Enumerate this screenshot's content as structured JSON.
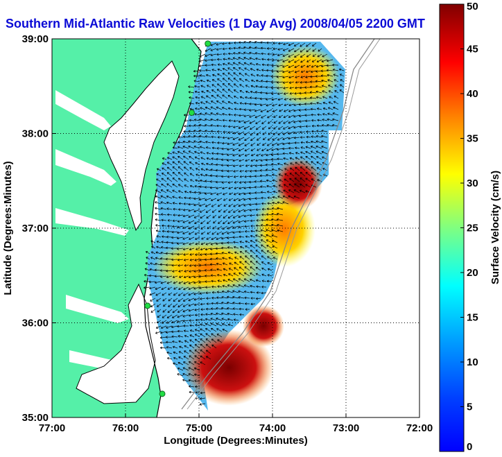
{
  "title": "Southern Mid-Atlantic Raw Velocities (1 Day Avg) 2008/04/05 2200 GMT",
  "map": {
    "xlabel": "Longitude (Degrees:Minutes)",
    "ylabel": "Latitude (Degrees:Minutes)",
    "lon_range": [
      -77,
      -72
    ],
    "lat_range": [
      35,
      39
    ],
    "x_ticks": [
      "77:00",
      "76:00",
      "75:00",
      "74:00",
      "73:00",
      "72:00"
    ],
    "y_ticks": [
      "39:00",
      "38:00",
      "37:00",
      "36:00",
      "35:00"
    ],
    "grid": "dotted",
    "land_color": "#55f0a8",
    "stations": [
      {
        "lon": -74.88,
        "lat": 38.95
      },
      {
        "lon": -75.1,
        "lat": 38.22
      },
      {
        "lon": -75.7,
        "lat": 36.18
      },
      {
        "lon": -75.5,
        "lat": 35.25
      }
    ]
  },
  "colorbar": {
    "label": "Surface Velocity (cm/s)",
    "min": 0,
    "max": 50,
    "ticks": [
      "0",
      "5",
      "10",
      "15",
      "20",
      "25",
      "30",
      "35",
      "40",
      "45",
      "50"
    ],
    "colormap": "jet"
  }
}
